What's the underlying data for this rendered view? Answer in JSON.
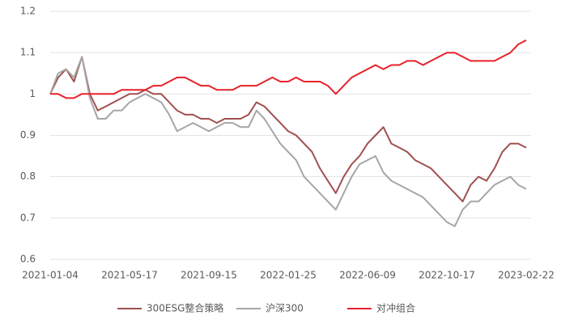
{
  "chart_data": {
    "type": "line",
    "categories": [
      "2021-01-04",
      null,
      null,
      null,
      null,
      null,
      null,
      null,
      null,
      null,
      "2021-05-17",
      null,
      null,
      null,
      null,
      null,
      null,
      null,
      null,
      null,
      "2021-09-15",
      null,
      null,
      null,
      null,
      null,
      null,
      null,
      null,
      null,
      "2022-01-25",
      null,
      null,
      null,
      null,
      null,
      null,
      null,
      null,
      null,
      "2022-06-09",
      null,
      null,
      null,
      null,
      null,
      null,
      null,
      null,
      null,
      "2022-10-17",
      null,
      null,
      null,
      null,
      null,
      null,
      null,
      null,
      null,
      "2023-02-22"
    ],
    "series": [
      {
        "name": "300ESG整合策略",
        "color": "#a0504f",
        "values": [
          1.0,
          1.04,
          1.06,
          1.03,
          1.09,
          1.0,
          0.96,
          0.97,
          0.98,
          0.99,
          1.0,
          1.0,
          1.01,
          1.0,
          1.0,
          0.98,
          0.96,
          0.95,
          0.95,
          0.94,
          0.94,
          0.93,
          0.94,
          0.94,
          0.94,
          0.95,
          0.98,
          0.97,
          0.95,
          0.93,
          0.91,
          0.9,
          0.88,
          0.86,
          0.82,
          0.79,
          0.76,
          0.8,
          0.83,
          0.85,
          0.88,
          0.9,
          0.92,
          0.88,
          0.87,
          0.86,
          0.84,
          0.83,
          0.82,
          0.8,
          0.78,
          0.76,
          0.74,
          0.78,
          0.8,
          0.79,
          0.82,
          0.86,
          0.88,
          0.88,
          0.87
        ]
      },
      {
        "name": "沪深300",
        "color": "#a6a6a6",
        "values": [
          1.0,
          1.05,
          1.06,
          1.04,
          1.09,
          0.99,
          0.94,
          0.94,
          0.96,
          0.96,
          0.98,
          0.99,
          1.0,
          0.99,
          0.98,
          0.95,
          0.91,
          0.92,
          0.93,
          0.92,
          0.91,
          0.92,
          0.93,
          0.93,
          0.92,
          0.92,
          0.96,
          0.94,
          0.91,
          0.88,
          0.86,
          0.84,
          0.8,
          0.78,
          0.76,
          0.74,
          0.72,
          0.76,
          0.8,
          0.83,
          0.84,
          0.85,
          0.81,
          0.79,
          0.78,
          0.77,
          0.76,
          0.75,
          0.73,
          0.71,
          0.69,
          0.68,
          0.72,
          0.74,
          0.74,
          0.76,
          0.78,
          0.79,
          0.8,
          0.78,
          0.77
        ]
      },
      {
        "name": "对冲组合",
        "color": "#e8202a",
        "values": [
          1.0,
          1.0,
          0.99,
          0.99,
          1.0,
          1.0,
          1.0,
          1.0,
          1.0,
          1.01,
          1.01,
          1.01,
          1.01,
          1.02,
          1.02,
          1.03,
          1.04,
          1.04,
          1.03,
          1.02,
          1.02,
          1.01,
          1.01,
          1.01,
          1.02,
          1.02,
          1.02,
          1.03,
          1.04,
          1.03,
          1.03,
          1.04,
          1.03,
          1.03,
          1.03,
          1.02,
          1.0,
          1.02,
          1.04,
          1.05,
          1.06,
          1.07,
          1.06,
          1.07,
          1.07,
          1.08,
          1.08,
          1.07,
          1.08,
          1.09,
          1.1,
          1.1,
          1.09,
          1.08,
          1.08,
          1.08,
          1.08,
          1.09,
          1.1,
          1.12,
          1.13
        ]
      }
    ],
    "ylim": [
      0.6,
      1.2
    ],
    "yticks": [
      0.6,
      0.7,
      0.8,
      0.9,
      1,
      1.1,
      1.2
    ],
    "grid": true,
    "legend": "bottom"
  }
}
